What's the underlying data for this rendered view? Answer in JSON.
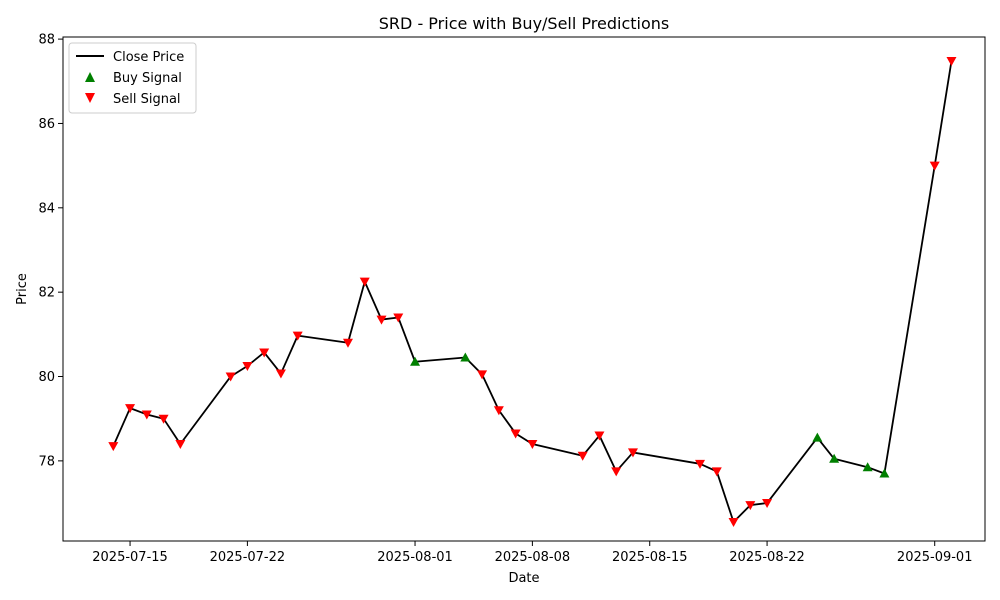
{
  "chart_data": {
    "type": "line",
    "title": "SRD - Price with Buy/Sell Predictions",
    "xlabel": "Date",
    "ylabel": "Price",
    "ylim": [
      76.1,
      88.05
    ],
    "xlim": [
      "2025-07-11",
      "2025-09-04"
    ],
    "grid": false,
    "legend_position": "top-left",
    "x_ticks": [
      "2025-07-15",
      "2025-07-22",
      "2025-08-01",
      "2025-08-08",
      "2025-08-15",
      "2025-08-22",
      "2025-09-01"
    ],
    "y_ticks": [
      78,
      80,
      82,
      84,
      86,
      88
    ],
    "series": [
      {
        "name": "Close Price",
        "color": "#000000",
        "points": [
          {
            "x": "2025-07-14",
            "y": 78.35
          },
          {
            "x": "2025-07-15",
            "y": 79.25
          },
          {
            "x": "2025-07-16",
            "y": 79.1
          },
          {
            "x": "2025-07-17",
            "y": 79.0
          },
          {
            "x": "2025-07-18",
            "y": 78.4
          },
          {
            "x": "2025-07-21",
            "y": 80.0
          },
          {
            "x": "2025-07-22",
            "y": 80.25
          },
          {
            "x": "2025-07-23",
            "y": 80.57
          },
          {
            "x": "2025-07-24",
            "y": 80.07
          },
          {
            "x": "2025-07-25",
            "y": 80.97
          },
          {
            "x": "2025-07-28",
            "y": 80.8
          },
          {
            "x": "2025-07-29",
            "y": 82.25
          },
          {
            "x": "2025-07-30",
            "y": 81.35
          },
          {
            "x": "2025-07-31",
            "y": 81.4
          },
          {
            "x": "2025-08-01",
            "y": 80.35
          },
          {
            "x": "2025-08-04",
            "y": 80.45
          },
          {
            "x": "2025-08-05",
            "y": 80.05
          },
          {
            "x": "2025-08-06",
            "y": 79.2
          },
          {
            "x": "2025-08-07",
            "y": 78.65
          },
          {
            "x": "2025-08-08",
            "y": 78.4
          },
          {
            "x": "2025-08-11",
            "y": 78.12
          },
          {
            "x": "2025-08-12",
            "y": 78.6
          },
          {
            "x": "2025-08-13",
            "y": 77.75
          },
          {
            "x": "2025-08-14",
            "y": 78.2
          },
          {
            "x": "2025-08-18",
            "y": 77.93
          },
          {
            "x": "2025-08-19",
            "y": 77.75
          },
          {
            "x": "2025-08-20",
            "y": 76.55
          },
          {
            "x": "2025-08-21",
            "y": 76.95
          },
          {
            "x": "2025-08-22",
            "y": 77.0
          },
          {
            "x": "2025-08-25",
            "y": 78.55
          },
          {
            "x": "2025-08-26",
            "y": 78.05
          },
          {
            "x": "2025-08-28",
            "y": 77.85
          },
          {
            "x": "2025-08-29",
            "y": 77.7
          },
          {
            "x": "2025-09-01",
            "y": 85.0
          },
          {
            "x": "2025-09-02",
            "y": 87.48
          }
        ]
      },
      {
        "name": "Buy Signal",
        "marker": "triangle-up",
        "color": "#008000",
        "dates": [
          "2025-08-01",
          "2025-08-04",
          "2025-08-25",
          "2025-08-26",
          "2025-08-28",
          "2025-08-29"
        ]
      },
      {
        "name": "Sell Signal",
        "marker": "triangle-down",
        "color": "#ff0000",
        "dates": [
          "2025-07-14",
          "2025-07-15",
          "2025-07-16",
          "2025-07-17",
          "2025-07-18",
          "2025-07-21",
          "2025-07-22",
          "2025-07-23",
          "2025-07-24",
          "2025-07-25",
          "2025-07-28",
          "2025-07-29",
          "2025-07-30",
          "2025-07-31",
          "2025-08-05",
          "2025-08-06",
          "2025-08-07",
          "2025-08-08",
          "2025-08-11",
          "2025-08-12",
          "2025-08-13",
          "2025-08-14",
          "2025-08-18",
          "2025-08-19",
          "2025-08-20",
          "2025-08-21",
          "2025-08-22",
          "2025-09-01",
          "2025-09-02"
        ]
      }
    ]
  }
}
